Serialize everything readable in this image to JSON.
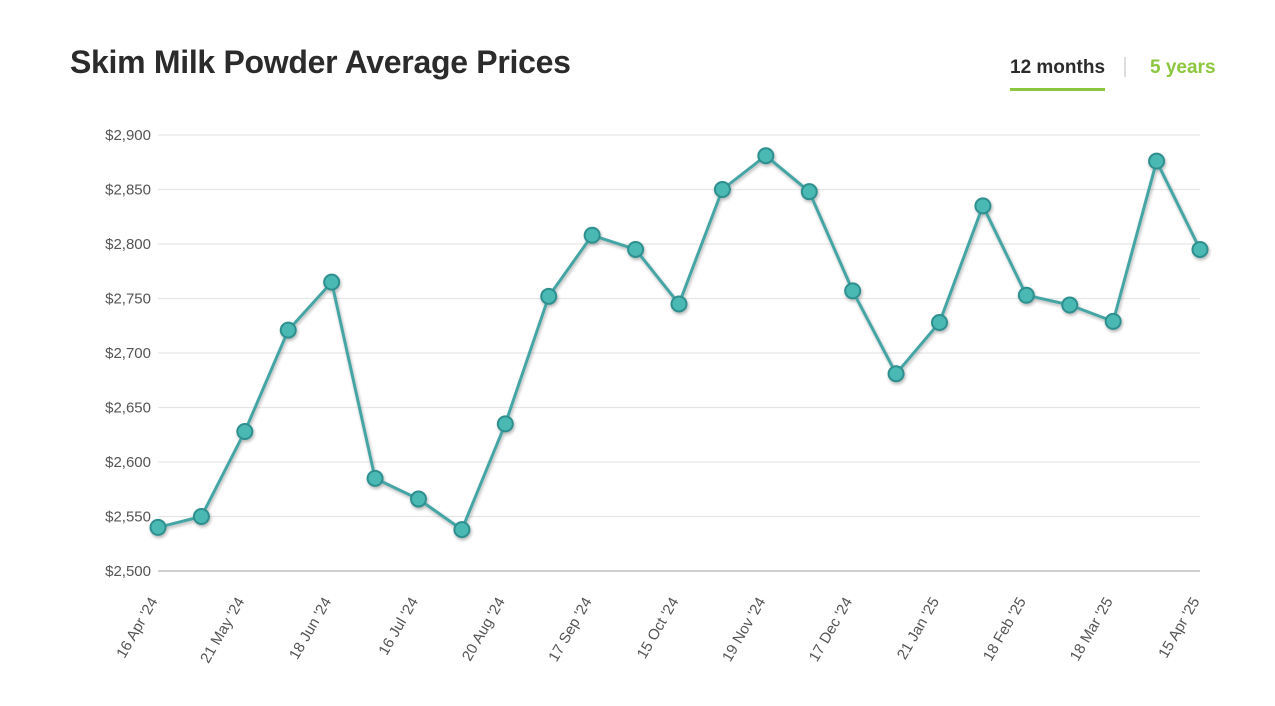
{
  "title": "Skim Milk Powder Average Prices",
  "range_tabs": {
    "active_label": "12 months",
    "inactive_label": "5 years"
  },
  "colors": {
    "line": "#45a5a5",
    "marker_fill": "#4bb9b3",
    "marker_stroke": "#2e8f8f",
    "grid": "#e6e6e6",
    "accent": "#8dc63f"
  },
  "chart_data": {
    "type": "line",
    "title": "Skim Milk Powder Average Prices",
    "xlabel": "",
    "ylabel": "",
    "ylim": [
      2500,
      2900
    ],
    "y_ticks": [
      2500,
      2550,
      2600,
      2650,
      2700,
      2750,
      2800,
      2850,
      2900
    ],
    "y_tick_labels": [
      "$2,500",
      "$2,550",
      "$2,600",
      "$2,650",
      "$2,700",
      "$2,750",
      "$2,800",
      "$2,850",
      "$2,900"
    ],
    "x_tick_labels": [
      "16 Apr '24",
      "21 May '24",
      "18 Jun '24",
      "16 Jul '24",
      "20 Aug '24",
      "17 Sep '24",
      "15 Oct '24",
      "19 Nov '24",
      "17 Dec '24",
      "21 Jan '25",
      "18 Feb '25",
      "18 Mar '25",
      "15 Apr '25"
    ],
    "grid": true,
    "legend": false,
    "values": [
      2540,
      2550,
      2628,
      2721,
      2765,
      2585,
      2566,
      2538,
      2635,
      2752,
      2808,
      2795,
      2745,
      2850,
      2881,
      2848,
      2757,
      2681,
      2728,
      2835,
      2753,
      2744,
      2729,
      2876,
      2795
    ]
  }
}
